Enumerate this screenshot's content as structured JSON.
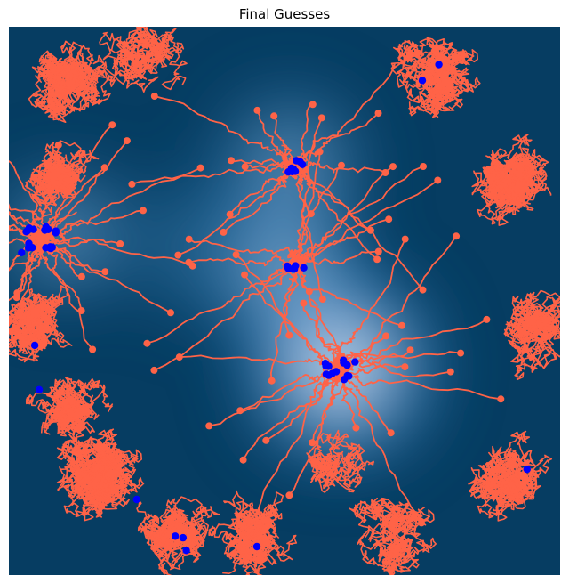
{
  "chart_data": {
    "type": "scatter",
    "title": "Final Guesses",
    "xlabel": "",
    "ylabel": "",
    "xlim": [
      0,
      1
    ],
    "ylim": [
      0,
      1
    ],
    "grid": false,
    "background": {
      "kind": "heatmap",
      "low_color": "#063d62",
      "mid_color": "#2f86c4",
      "high_color": "#f4f4fb",
      "peaks": [
        {
          "x": 0.6,
          "y": 0.38,
          "strength": 1.0,
          "spread": 0.13
        },
        {
          "x": 0.5,
          "y": 0.56,
          "strength": 0.65,
          "spread": 0.11
        },
        {
          "x": 0.51,
          "y": 0.75,
          "strength": 0.55,
          "spread": 0.1
        },
        {
          "x": 0.1,
          "y": 0.62,
          "strength": 0.55,
          "spread": 0.09
        },
        {
          "x": 0.33,
          "y": 0.6,
          "strength": 0.3,
          "spread": 0.1
        }
      ]
    },
    "trajectory_color": "#ff6347",
    "point_color": "#0000ff",
    "clusters": [
      {
        "x": 0.6,
        "y": 0.375,
        "n": 14
      },
      {
        "x": 0.52,
        "y": 0.565,
        "n": 6
      },
      {
        "x": 0.52,
        "y": 0.745,
        "n": 8
      },
      {
        "x": 0.06,
        "y": 0.615,
        "n": 16
      }
    ],
    "final_points": [
      {
        "x": 0.78,
        "y": 0.931
      },
      {
        "x": 0.75,
        "y": 0.902
      },
      {
        "x": 0.023,
        "y": 0.588
      },
      {
        "x": 0.047,
        "y": 0.419
      },
      {
        "x": 0.055,
        "y": 0.338
      },
      {
        "x": 0.94,
        "y": 0.193
      },
      {
        "x": 0.232,
        "y": 0.138
      },
      {
        "x": 0.302,
        "y": 0.071
      },
      {
        "x": 0.316,
        "y": 0.068
      },
      {
        "x": 0.322,
        "y": 0.045
      },
      {
        "x": 0.45,
        "y": 0.052
      }
    ]
  }
}
